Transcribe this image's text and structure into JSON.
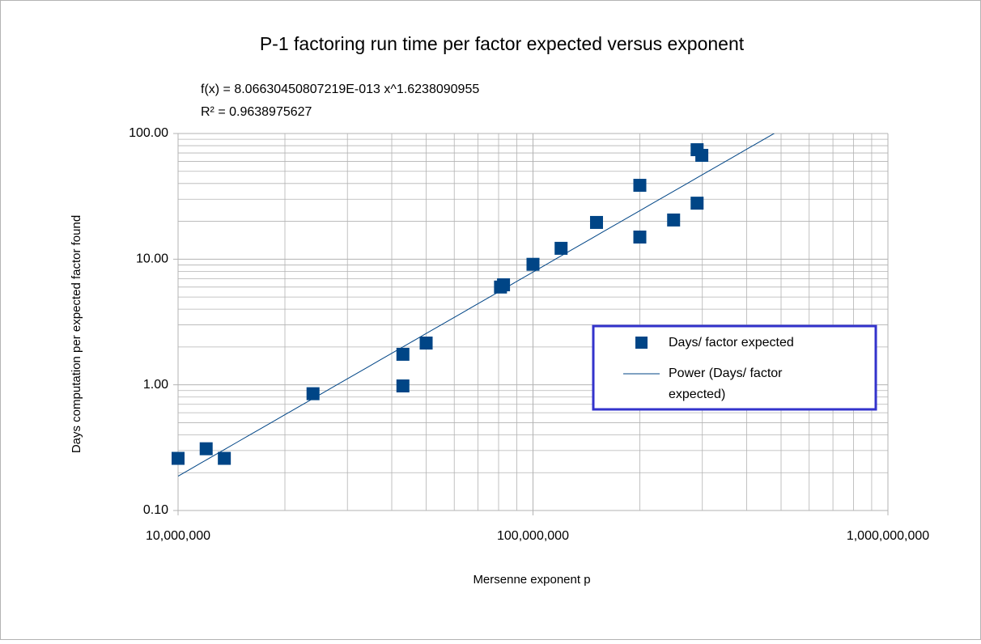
{
  "chart_data": {
    "type": "scatter",
    "title": "P-1 factoring run time per factor expected versus exponent",
    "x_label": "Mersenne exponent p",
    "y_label": "Days computation per expected factor found",
    "x_log": true,
    "y_log": true,
    "grid": true,
    "legend": "right",
    "xlim": [
      10000000,
      1000000000
    ],
    "ylim": [
      0.1,
      100
    ],
    "xticks": [
      {
        "value": 10000000,
        "label": "10,000,000"
      },
      {
        "value": 100000000,
        "label": "100,000,000"
      },
      {
        "value": 1000000000,
        "label": "1,000,000,000"
      }
    ],
    "yticks": [
      {
        "value": 0.1,
        "label": "0.10"
      },
      {
        "value": 1,
        "label": "1.00"
      },
      {
        "value": 10,
        "label": "10.00"
      },
      {
        "value": 100,
        "label": "100.00"
      }
    ],
    "xminor": [
      20000000,
      30000000,
      40000000,
      50000000,
      60000000,
      70000000,
      80000000,
      90000000,
      200000000,
      300000000,
      400000000,
      500000000,
      600000000,
      700000000,
      800000000,
      900000000
    ],
    "yminor": [
      0.2,
      0.3,
      0.4,
      0.5,
      0.6,
      0.7,
      0.8,
      0.9,
      2,
      3,
      4,
      5,
      6,
      7,
      8,
      9,
      20,
      30,
      40,
      50,
      60,
      70,
      80,
      90
    ],
    "series": [
      {
        "name": "Days/ factor expected",
        "color": "#004586",
        "x": [
          10000000,
          12000000,
          13500000,
          24000000,
          43000000,
          43000000,
          50000000,
          81000000,
          82600000,
          100000000,
          120000000,
          151000000,
          200000000,
          200000000,
          249000000,
          290000000,
          290000000,
          299000000
        ],
        "values": [
          0.26,
          0.31,
          0.26,
          0.85,
          1.75,
          0.98,
          2.15,
          6.0,
          6.25,
          9.1,
          12.2,
          19.6,
          38.7,
          15.0,
          20.5,
          27.9,
          74.3,
          67
        ]
      }
    ],
    "trendline": {
      "name": "Power (Days/ factor expected)",
      "color": "#004586",
      "equation": "f(x) = 8.06630450807219E-013 x^1.6238090955",
      "r_squared": "R² = 0.9638975627",
      "coefficient": 8.06630450807219e-13,
      "exponent": 1.6238090955
    }
  }
}
